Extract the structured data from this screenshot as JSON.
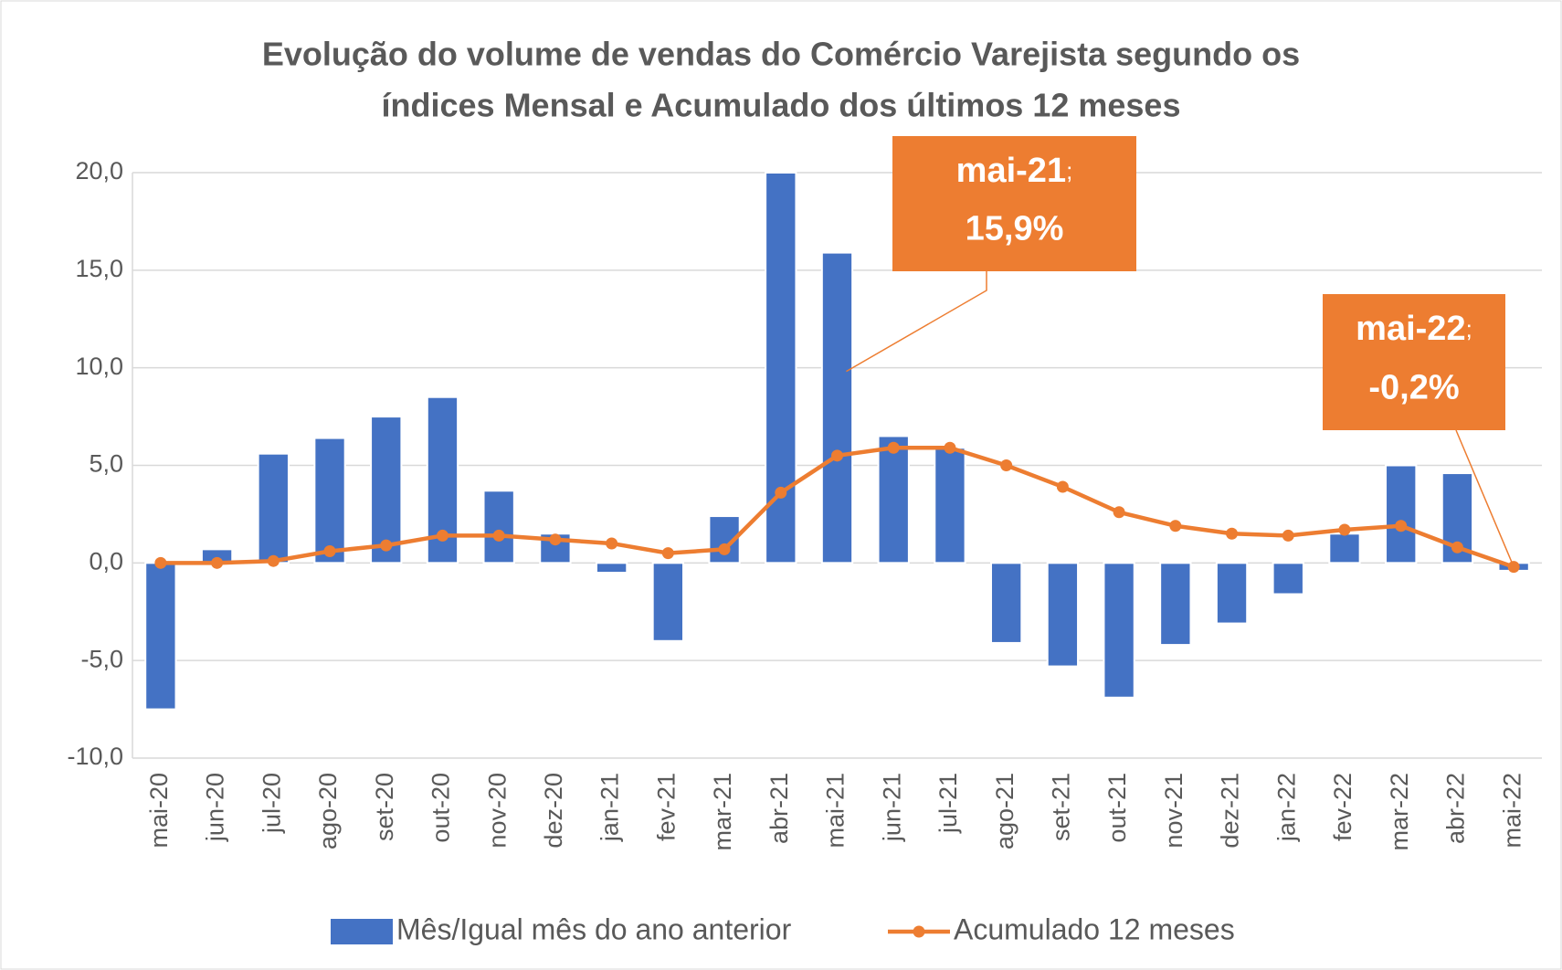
{
  "chart_data": {
    "type": "bar-line",
    "title": [
      "Evolução do volume de vendas do Comércio Varejista segundo os",
      "índices Mensal e Acumulado dos últimos 12 meses"
    ],
    "categories": [
      "mai-20",
      "jun-20",
      "jul-20",
      "ago-20",
      "set-20",
      "out-20",
      "nov-20",
      "dez-20",
      "jan-21",
      "fev-21",
      "mar-21",
      "abr-21",
      "mai-21",
      "jun-21",
      "jul-21",
      "ago-21",
      "set-21",
      "out-21",
      "nov-21",
      "dez-21",
      "jan-22",
      "fev-22",
      "mar-22",
      "abr-22",
      "mai-22"
    ],
    "series": [
      {
        "name": "Mês/Igual mês do ano anterior",
        "type": "bar",
        "color": "#4472c4",
        "values": [
          -7.5,
          0.7,
          5.6,
          6.4,
          7.5,
          8.5,
          3.7,
          1.5,
          -0.5,
          -4.0,
          2.4,
          20.0,
          15.9,
          6.5,
          5.9,
          -4.1,
          -5.3,
          -6.9,
          -4.2,
          -3.1,
          -1.6,
          1.5,
          5.0,
          4.6,
          -0.4
        ]
      },
      {
        "name": "Acumulado 12 meses",
        "type": "line",
        "color": "#ed7d31",
        "values": [
          0.0,
          0.0,
          0.1,
          0.6,
          0.9,
          1.4,
          1.4,
          1.2,
          1.0,
          0.5,
          0.7,
          3.6,
          5.5,
          5.9,
          5.9,
          5.0,
          3.9,
          2.6,
          1.9,
          1.5,
          1.4,
          1.7,
          1.9,
          0.8,
          -0.2
        ]
      }
    ],
    "ylim": [
      -10,
      20
    ],
    "yticks": [
      {
        "value": -10,
        "label": "-10,0"
      },
      {
        "value": -5,
        "label": "-5,0"
      },
      {
        "value": 0,
        "label": "0,0"
      },
      {
        "value": 5,
        "label": "5,0"
      },
      {
        "value": 10,
        "label": "10,0"
      },
      {
        "value": 15,
        "label": "15,0"
      },
      {
        "value": 20,
        "label": "20,0"
      }
    ],
    "grid": true,
    "legend": "bottom",
    "annotations": [
      {
        "category": "mai-21",
        "separator": ";",
        "label": "15,9%",
        "color": "#ed7d31"
      },
      {
        "category": "mai-22",
        "separator": ";",
        "label": "-0,2%",
        "color": "#ed7d31"
      }
    ]
  }
}
